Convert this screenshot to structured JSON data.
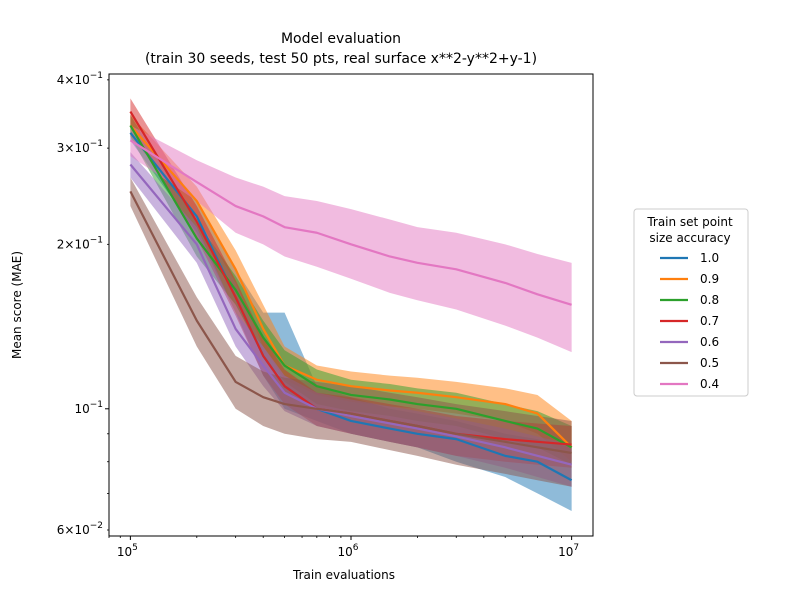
{
  "chart_data": {
    "type": "line",
    "title": "Model evaluation",
    "subtitle": "(train 30 seeds, test 50 pts, real surface x**2-y**2+y-1)",
    "xlabel": "Train evaluations",
    "ylabel": "Mean score (MAE)",
    "xscale": "log",
    "yscale": "log",
    "xlim": [
      80000,
      12500000
    ],
    "ylim": [
      0.0585,
      0.41
    ],
    "grid": false,
    "x_ticks": [
      {
        "value": 100000,
        "base": "10",
        "exp": "5"
      },
      {
        "value": 1000000,
        "base": "10",
        "exp": "6"
      },
      {
        "value": 10000000,
        "base": "10",
        "exp": "7"
      }
    ],
    "y_ticks": [
      {
        "value": 0.06,
        "mant": "6×",
        "base": "10",
        "exp": "−2"
      },
      {
        "value": 0.1,
        "mant": "",
        "base": "10",
        "exp": "−1"
      },
      {
        "value": 0.2,
        "mant": "2×",
        "base": "10",
        "exp": "−1"
      },
      {
        "value": 0.3,
        "mant": "3×",
        "base": "10",
        "exp": "−1"
      },
      {
        "value": 0.4,
        "mant": "4×",
        "base": "10",
        "exp": "−1"
      }
    ],
    "legend": {
      "title_line1": "Train set point",
      "title_line2": "size accuracy",
      "placement": "center-right outside"
    },
    "series": [
      {
        "name": "1.0",
        "color": "#1f77b4",
        "points": [
          [
            100000,
            0.32
          ],
          [
            200000,
            0.225
          ],
          [
            300000,
            0.16
          ],
          [
            400000,
            0.125
          ],
          [
            500000,
            0.11
          ],
          [
            700000,
            0.1
          ],
          [
            1000000,
            0.095
          ],
          [
            1500000,
            0.092
          ],
          [
            2000000,
            0.09
          ],
          [
            3000000,
            0.088
          ],
          [
            5000000,
            0.082
          ],
          [
            7000000,
            0.08
          ],
          [
            10000000,
            0.074
          ]
        ],
        "band": [
          [
            100000,
            0.31,
            0.33
          ],
          [
            200000,
            0.21,
            0.24
          ],
          [
            300000,
            0.15,
            0.18
          ],
          [
            400000,
            0.115,
            0.15
          ],
          [
            500000,
            0.1,
            0.15
          ],
          [
            700000,
            0.095,
            0.11
          ],
          [
            1000000,
            0.09,
            0.105
          ],
          [
            1500000,
            0.087,
            0.1
          ],
          [
            2000000,
            0.085,
            0.098
          ],
          [
            3000000,
            0.08,
            0.095
          ],
          [
            5000000,
            0.075,
            0.09
          ],
          [
            7000000,
            0.07,
            0.088
          ],
          [
            10000000,
            0.065,
            0.085
          ]
        ]
      },
      {
        "name": "0.9",
        "color": "#ff7f0e",
        "points": [
          [
            100000,
            0.33
          ],
          [
            200000,
            0.24
          ],
          [
            300000,
            0.18
          ],
          [
            400000,
            0.14
          ],
          [
            500000,
            0.12
          ],
          [
            700000,
            0.113
          ],
          [
            1000000,
            0.11
          ],
          [
            1500000,
            0.108
          ],
          [
            2000000,
            0.107
          ],
          [
            3000000,
            0.105
          ],
          [
            5000000,
            0.102
          ],
          [
            7000000,
            0.098
          ],
          [
            10000000,
            0.085
          ]
        ],
        "band": [
          [
            100000,
            0.315,
            0.345
          ],
          [
            200000,
            0.225,
            0.255
          ],
          [
            300000,
            0.17,
            0.195
          ],
          [
            400000,
            0.13,
            0.155
          ],
          [
            500000,
            0.113,
            0.13
          ],
          [
            700000,
            0.106,
            0.12
          ],
          [
            1000000,
            0.103,
            0.117
          ],
          [
            1500000,
            0.101,
            0.115
          ],
          [
            2000000,
            0.1,
            0.114
          ],
          [
            3000000,
            0.098,
            0.112
          ],
          [
            5000000,
            0.095,
            0.109
          ],
          [
            7000000,
            0.09,
            0.106
          ],
          [
            10000000,
            0.08,
            0.095
          ]
        ]
      },
      {
        "name": "0.8",
        "color": "#2ca02c",
        "points": [
          [
            100000,
            0.33
          ],
          [
            200000,
            0.205
          ],
          [
            300000,
            0.165
          ],
          [
            400000,
            0.135
          ],
          [
            500000,
            0.12
          ],
          [
            700000,
            0.11
          ],
          [
            1000000,
            0.106
          ],
          [
            1500000,
            0.104
          ],
          [
            2000000,
            0.102
          ],
          [
            3000000,
            0.1
          ],
          [
            5000000,
            0.095
          ],
          [
            7000000,
            0.092
          ],
          [
            10000000,
            0.085
          ]
        ],
        "band": [
          [
            100000,
            0.315,
            0.345
          ],
          [
            200000,
            0.19,
            0.22
          ],
          [
            300000,
            0.155,
            0.175
          ],
          [
            400000,
            0.125,
            0.145
          ],
          [
            500000,
            0.112,
            0.128
          ],
          [
            700000,
            0.102,
            0.118
          ],
          [
            1000000,
            0.099,
            0.113
          ],
          [
            1500000,
            0.097,
            0.111
          ],
          [
            2000000,
            0.095,
            0.109
          ],
          [
            3000000,
            0.093,
            0.107
          ],
          [
            5000000,
            0.088,
            0.102
          ],
          [
            7000000,
            0.085,
            0.099
          ],
          [
            10000000,
            0.079,
            0.093
          ]
        ]
      },
      {
        "name": "0.7",
        "color": "#d62728",
        "points": [
          [
            100000,
            0.35
          ],
          [
            200000,
            0.22
          ],
          [
            300000,
            0.16
          ],
          [
            400000,
            0.125
          ],
          [
            500000,
            0.11
          ],
          [
            700000,
            0.1
          ],
          [
            1000000,
            0.098
          ],
          [
            1500000,
            0.095
          ],
          [
            2000000,
            0.093
          ],
          [
            3000000,
            0.09
          ],
          [
            5000000,
            0.088
          ],
          [
            7000000,
            0.087
          ],
          [
            10000000,
            0.086
          ]
        ],
        "band": [
          [
            100000,
            0.33,
            0.37
          ],
          [
            200000,
            0.205,
            0.235
          ],
          [
            300000,
            0.148,
            0.172
          ],
          [
            400000,
            0.115,
            0.135
          ],
          [
            500000,
            0.102,
            0.118
          ],
          [
            700000,
            0.093,
            0.107
          ],
          [
            1000000,
            0.09,
            0.105
          ],
          [
            1500000,
            0.087,
            0.102
          ],
          [
            2000000,
            0.085,
            0.1
          ],
          [
            3000000,
            0.082,
            0.097
          ],
          [
            5000000,
            0.08,
            0.095
          ],
          [
            7000000,
            0.079,
            0.094
          ],
          [
            10000000,
            0.078,
            0.093
          ]
        ]
      },
      {
        "name": "0.6",
        "color": "#9467bd",
        "points": [
          [
            100000,
            0.28
          ],
          [
            200000,
            0.2
          ],
          [
            300000,
            0.14
          ],
          [
            400000,
            0.12
          ],
          [
            500000,
            0.107
          ],
          [
            700000,
            0.1
          ],
          [
            1000000,
            0.097
          ],
          [
            1500000,
            0.094
          ],
          [
            2000000,
            0.092
          ],
          [
            3000000,
            0.089
          ],
          [
            5000000,
            0.085
          ],
          [
            7000000,
            0.082
          ],
          [
            10000000,
            0.079
          ]
        ],
        "band": [
          [
            100000,
            0.265,
            0.295
          ],
          [
            200000,
            0.185,
            0.215
          ],
          [
            300000,
            0.13,
            0.15
          ],
          [
            400000,
            0.11,
            0.13
          ],
          [
            500000,
            0.099,
            0.115
          ],
          [
            700000,
            0.093,
            0.107
          ],
          [
            1000000,
            0.09,
            0.104
          ],
          [
            1500000,
            0.087,
            0.101
          ],
          [
            2000000,
            0.085,
            0.099
          ],
          [
            3000000,
            0.082,
            0.096
          ],
          [
            5000000,
            0.078,
            0.092
          ],
          [
            7000000,
            0.075,
            0.089
          ],
          [
            10000000,
            0.072,
            0.086
          ]
        ]
      },
      {
        "name": "0.5",
        "color": "#8c564b",
        "points": [
          [
            100000,
            0.25
          ],
          [
            200000,
            0.145
          ],
          [
            300000,
            0.112
          ],
          [
            400000,
            0.105
          ],
          [
            500000,
            0.102
          ],
          [
            700000,
            0.1
          ],
          [
            1000000,
            0.098
          ],
          [
            1500000,
            0.095
          ],
          [
            2000000,
            0.093
          ],
          [
            3000000,
            0.09
          ],
          [
            5000000,
            0.087
          ],
          [
            7000000,
            0.085
          ],
          [
            10000000,
            0.083
          ]
        ],
        "band": [
          [
            100000,
            0.235,
            0.265
          ],
          [
            200000,
            0.13,
            0.16
          ],
          [
            300000,
            0.1,
            0.125
          ],
          [
            400000,
            0.093,
            0.117
          ],
          [
            500000,
            0.09,
            0.114
          ],
          [
            700000,
            0.088,
            0.112
          ],
          [
            1000000,
            0.087,
            0.11
          ],
          [
            1500000,
            0.084,
            0.107
          ],
          [
            2000000,
            0.082,
            0.105
          ],
          [
            3000000,
            0.079,
            0.102
          ],
          [
            5000000,
            0.076,
            0.099
          ],
          [
            7000000,
            0.074,
            0.097
          ],
          [
            10000000,
            0.072,
            0.095
          ]
        ]
      },
      {
        "name": "0.4",
        "color": "#e377c2",
        "points": [
          [
            100000,
            0.31
          ],
          [
            200000,
            0.26
          ],
          [
            300000,
            0.235
          ],
          [
            400000,
            0.225
          ],
          [
            500000,
            0.215
          ],
          [
            700000,
            0.21
          ],
          [
            1000000,
            0.2
          ],
          [
            1500000,
            0.19
          ],
          [
            2000000,
            0.185
          ],
          [
            3000000,
            0.18
          ],
          [
            5000000,
            0.17
          ],
          [
            7000000,
            0.162
          ],
          [
            10000000,
            0.155
          ]
        ],
        "band": [
          [
            100000,
            0.29,
            0.33
          ],
          [
            200000,
            0.24,
            0.285
          ],
          [
            300000,
            0.21,
            0.265
          ],
          [
            400000,
            0.2,
            0.255
          ],
          [
            500000,
            0.19,
            0.245
          ],
          [
            700000,
            0.182,
            0.24
          ],
          [
            1000000,
            0.173,
            0.232
          ],
          [
            1500000,
            0.163,
            0.222
          ],
          [
            2000000,
            0.158,
            0.215
          ],
          [
            3000000,
            0.152,
            0.21
          ],
          [
            5000000,
            0.142,
            0.2
          ],
          [
            7000000,
            0.135,
            0.192
          ],
          [
            10000000,
            0.127,
            0.185
          ]
        ]
      }
    ]
  }
}
